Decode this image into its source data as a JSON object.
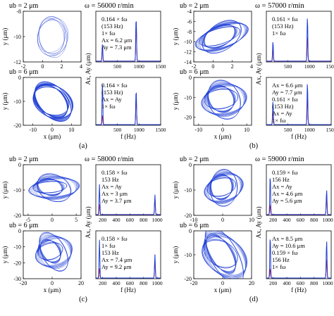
{
  "colors": {
    "orbit": "#1f3fd6",
    "series_x": "#1f3fd6",
    "series_y": "#d11a2a",
    "axis": "#000000"
  },
  "axis_labels": {
    "y_um": "y (μm)",
    "x_um": "x (μm)",
    "f_hz": "f (Hz)",
    "amp": "Ax, Ay (μm)"
  },
  "chart_data": [
    {
      "panel": "(a)",
      "speed_label": "ω = 56000 r/min",
      "orbits": [
        {
          "ub_label": "ub = 2 μm",
          "shape": "multi-loop ellipse orbit",
          "xlim": [
            -2,
            4
          ],
          "ylim": [
            -12,
            -8
          ],
          "xticks": [
            -2,
            0,
            2,
            4
          ],
          "yticks": [
            -8,
            -10,
            -12
          ],
          "center": [
            1,
            -10
          ],
          "rx": 1.6,
          "ry": 1.6,
          "tilt": -20,
          "loops": 6,
          "spread": 0.18
        },
        {
          "ub_label": "ub = 6 μm",
          "shape": "dense filled orbit",
          "xlim": [
            -15,
            15
          ],
          "ylim": [
            -20,
            0
          ],
          "xticks": [
            -10,
            0,
            10
          ],
          "yticks": [
            0,
            -10,
            -20
          ],
          "center": [
            0,
            -10
          ],
          "rx": 11,
          "ry": 7,
          "tilt": -25,
          "loops": 40,
          "spread": 0.2
        }
      ],
      "spectra": [
        {
          "type": "line",
          "xlim": [
            0,
            1500
          ],
          "xticks": [
            500,
            1000,
            1500
          ],
          "peaks": [
            {
              "f": 153,
              "ax": 3.5,
              "ay": 3.0
            },
            {
              "f": 933,
              "ax": 9.0,
              "ay": 8.0
            }
          ],
          "annotations": [
            "0.164 × fω",
            "(153 Hz)",
            "1× fω",
            "Ax = 6.2 μm",
            "Ay = 7.3 μm"
          ]
        },
        {
          "type": "line",
          "xlim": [
            0,
            1500
          ],
          "xticks": [
            500,
            1000,
            1500
          ],
          "peaks": [
            {
              "f": 153,
              "ax": 9.0,
              "ay": 2.0
            },
            {
              "f": 933,
              "ax": 7.5,
              "ay": 6.0
            }
          ],
          "annotations": [
            "0.164 × fω",
            "(153 Hz)",
            "Ax = Ay",
            "1× fω"
          ]
        }
      ]
    },
    {
      "panel": "(b)",
      "speed_label": "ω = 57000 r/min",
      "orbits": [
        {
          "ub_label": "ub = 2 μm",
          "shape": "torus orbit",
          "xlim": [
            -2,
            4
          ],
          "ylim": [
            -14,
            -4
          ],
          "xticks": [
            -2,
            0,
            2,
            4
          ],
          "yticks": [
            -4,
            -6,
            -8,
            -10,
            -12,
            -14
          ],
          "center": [
            0.8,
            -9
          ],
          "rx": 2.0,
          "ry": 3.5,
          "tilt": -35,
          "loops": 30,
          "spread": 0.35
        },
        {
          "ub_label": "ub = 6 μm",
          "shape": "torus orbit",
          "xlim": [
            -12,
            12
          ],
          "ylim": [
            -24,
            0
          ],
          "xticks": [
            -10,
            0,
            10
          ],
          "yticks": [
            0,
            -10,
            -20
          ],
          "center": [
            0,
            -11
          ],
          "rx": 9,
          "ry": 9,
          "tilt": -30,
          "loops": 30,
          "spread": 0.4
        }
      ],
      "spectra": [
        {
          "type": "line",
          "xlim": [
            0,
            1500
          ],
          "xticks": [
            500,
            1000,
            1500
          ],
          "peaks": [
            {
              "f": 153,
              "ax": 4.0,
              "ay": 2.5
            },
            {
              "f": 950,
              "ax": 9.0,
              "ay": 5.0
            }
          ],
          "annotations": [
            "0.161 × fω",
            "(153 Hz)",
            "1× fω"
          ]
        },
        {
          "type": "line",
          "xlim": [
            0,
            1500
          ],
          "xticks": [
            500,
            1000,
            1500
          ],
          "peaks": [
            {
              "f": 153,
              "ax": 5.0,
              "ay": 3.0
            },
            {
              "f": 950,
              "ax": 9.0,
              "ay": 6.0
            }
          ],
          "annotations": [
            "Ax = 6.6 μm",
            "Ay = 7.7 μm",
            "0.161 × fω",
            "(153 Hz)",
            "Ax = Ay",
            "1× fω"
          ]
        }
      ]
    },
    {
      "panel": "(c)",
      "speed_label": "ω = 58000 r/min",
      "orbits": [
        {
          "ub_label": "ub = 2 μm",
          "shape": "torus orbit",
          "xlim": [
            -6,
            6
          ],
          "ylim": [
            -20,
            0
          ],
          "xticks": [
            -5,
            0,
            5
          ],
          "yticks": [
            0,
            -10,
            -20
          ],
          "center": [
            0,
            -9
          ],
          "rx": 5,
          "ry": 5,
          "tilt": -30,
          "loops": 30,
          "spread": 0.5
        },
        {
          "ub_label": "ub = 6 μm",
          "shape": "torus orbit",
          "xlim": [
            -20,
            20
          ],
          "ylim": [
            -30,
            0
          ],
          "xticks": [
            -20,
            0,
            20
          ],
          "yticks": [
            0,
            -10,
            -20,
            -30
          ],
          "center": [
            0,
            -13
          ],
          "rx": 13,
          "ry": 11,
          "tilt": -20,
          "loops": 30,
          "spread": 0.5
        }
      ],
      "spectra": [
        {
          "type": "line",
          "xlim": [
            100,
            1050
          ],
          "xticks": [
            200,
            400,
            600,
            800,
            1000
          ],
          "peaks": [
            {
              "f": 153,
              "ax": 6.0,
              "ay": 2.0
            },
            {
              "f": 966,
              "ax": 4.0,
              "ay": 3.5
            }
          ],
          "annotations": [
            "0.158 × fω",
            "153 Hz",
            "Ax = Ay",
            "Ax = 3 μm",
            "Ay = 3.7 μm"
          ]
        },
        {
          "type": "line",
          "xlim": [
            100,
            1050
          ],
          "xticks": [
            200,
            400,
            600,
            800,
            1000
          ],
          "peaks": [
            {
              "f": 153,
              "ax": 8.0,
              "ay": 2.0
            },
            {
              "f": 966,
              "ax": 5.0,
              "ay": 4.0
            }
          ],
          "annotations": [
            "0.158 × fω",
            "1× fω",
            "153 Hz",
            "Ax = 7.4 μm",
            "Ay = 9.2 μm"
          ]
        }
      ]
    },
    {
      "panel": "(d)",
      "speed_label": "ω = 59000 r/min",
      "orbits": [
        {
          "ub_label": "ub = 2 μm",
          "shape": "torus orbit",
          "xlim": [
            -10,
            10
          ],
          "ylim": [
            -20,
            0
          ],
          "xticks": [
            -10,
            0,
            10
          ],
          "yticks": [
            0,
            -10,
            -20
          ],
          "center": [
            0,
            -9
          ],
          "rx": 6,
          "ry": 7,
          "tilt": -35,
          "loops": 30,
          "spread": 0.4
        },
        {
          "ub_label": "ub = 6 μm",
          "shape": "torus orbit",
          "xlim": [
            -20,
            20
          ],
          "ylim": [
            -20,
            0
          ],
          "xticks": [
            -20,
            0,
            20
          ],
          "yticks": [
            0,
            -10,
            -20
          ],
          "center": [
            0,
            -10
          ],
          "rx": 17,
          "ry": 9,
          "tilt": -25,
          "loops": 30,
          "spread": 0.4
        }
      ],
      "spectra": [
        {
          "type": "line",
          "xlim": [
            100,
            1050
          ],
          "xticks": [
            200,
            400,
            600,
            800,
            1000
          ],
          "peaks": [
            {
              "f": 156,
              "ax": 8.0,
              "ay": 2.0
            },
            {
              "f": 983,
              "ax": 5.0,
              "ay": 4.0
            }
          ],
          "annotations": [
            "0.159 × fω",
            "156 Hz",
            "Ax = Ay",
            "Ax = 4.6 μm",
            "Ay = 5.6 μm"
          ]
        },
        {
          "type": "line",
          "xlim": [
            100,
            1050
          ],
          "xticks": [
            200,
            400,
            600,
            800,
            1000
          ],
          "peaks": [
            {
              "f": 156,
              "ax": 9.0,
              "ay": 2.0
            },
            {
              "f": 983,
              "ax": 8.0,
              "ay": 4.0
            }
          ],
          "annotations": [
            "Ax = 8.5 μm",
            "Ay = 10.6 μm",
            "0.159 × fω",
            "156 Hz",
            "1× fω"
          ]
        }
      ]
    }
  ]
}
